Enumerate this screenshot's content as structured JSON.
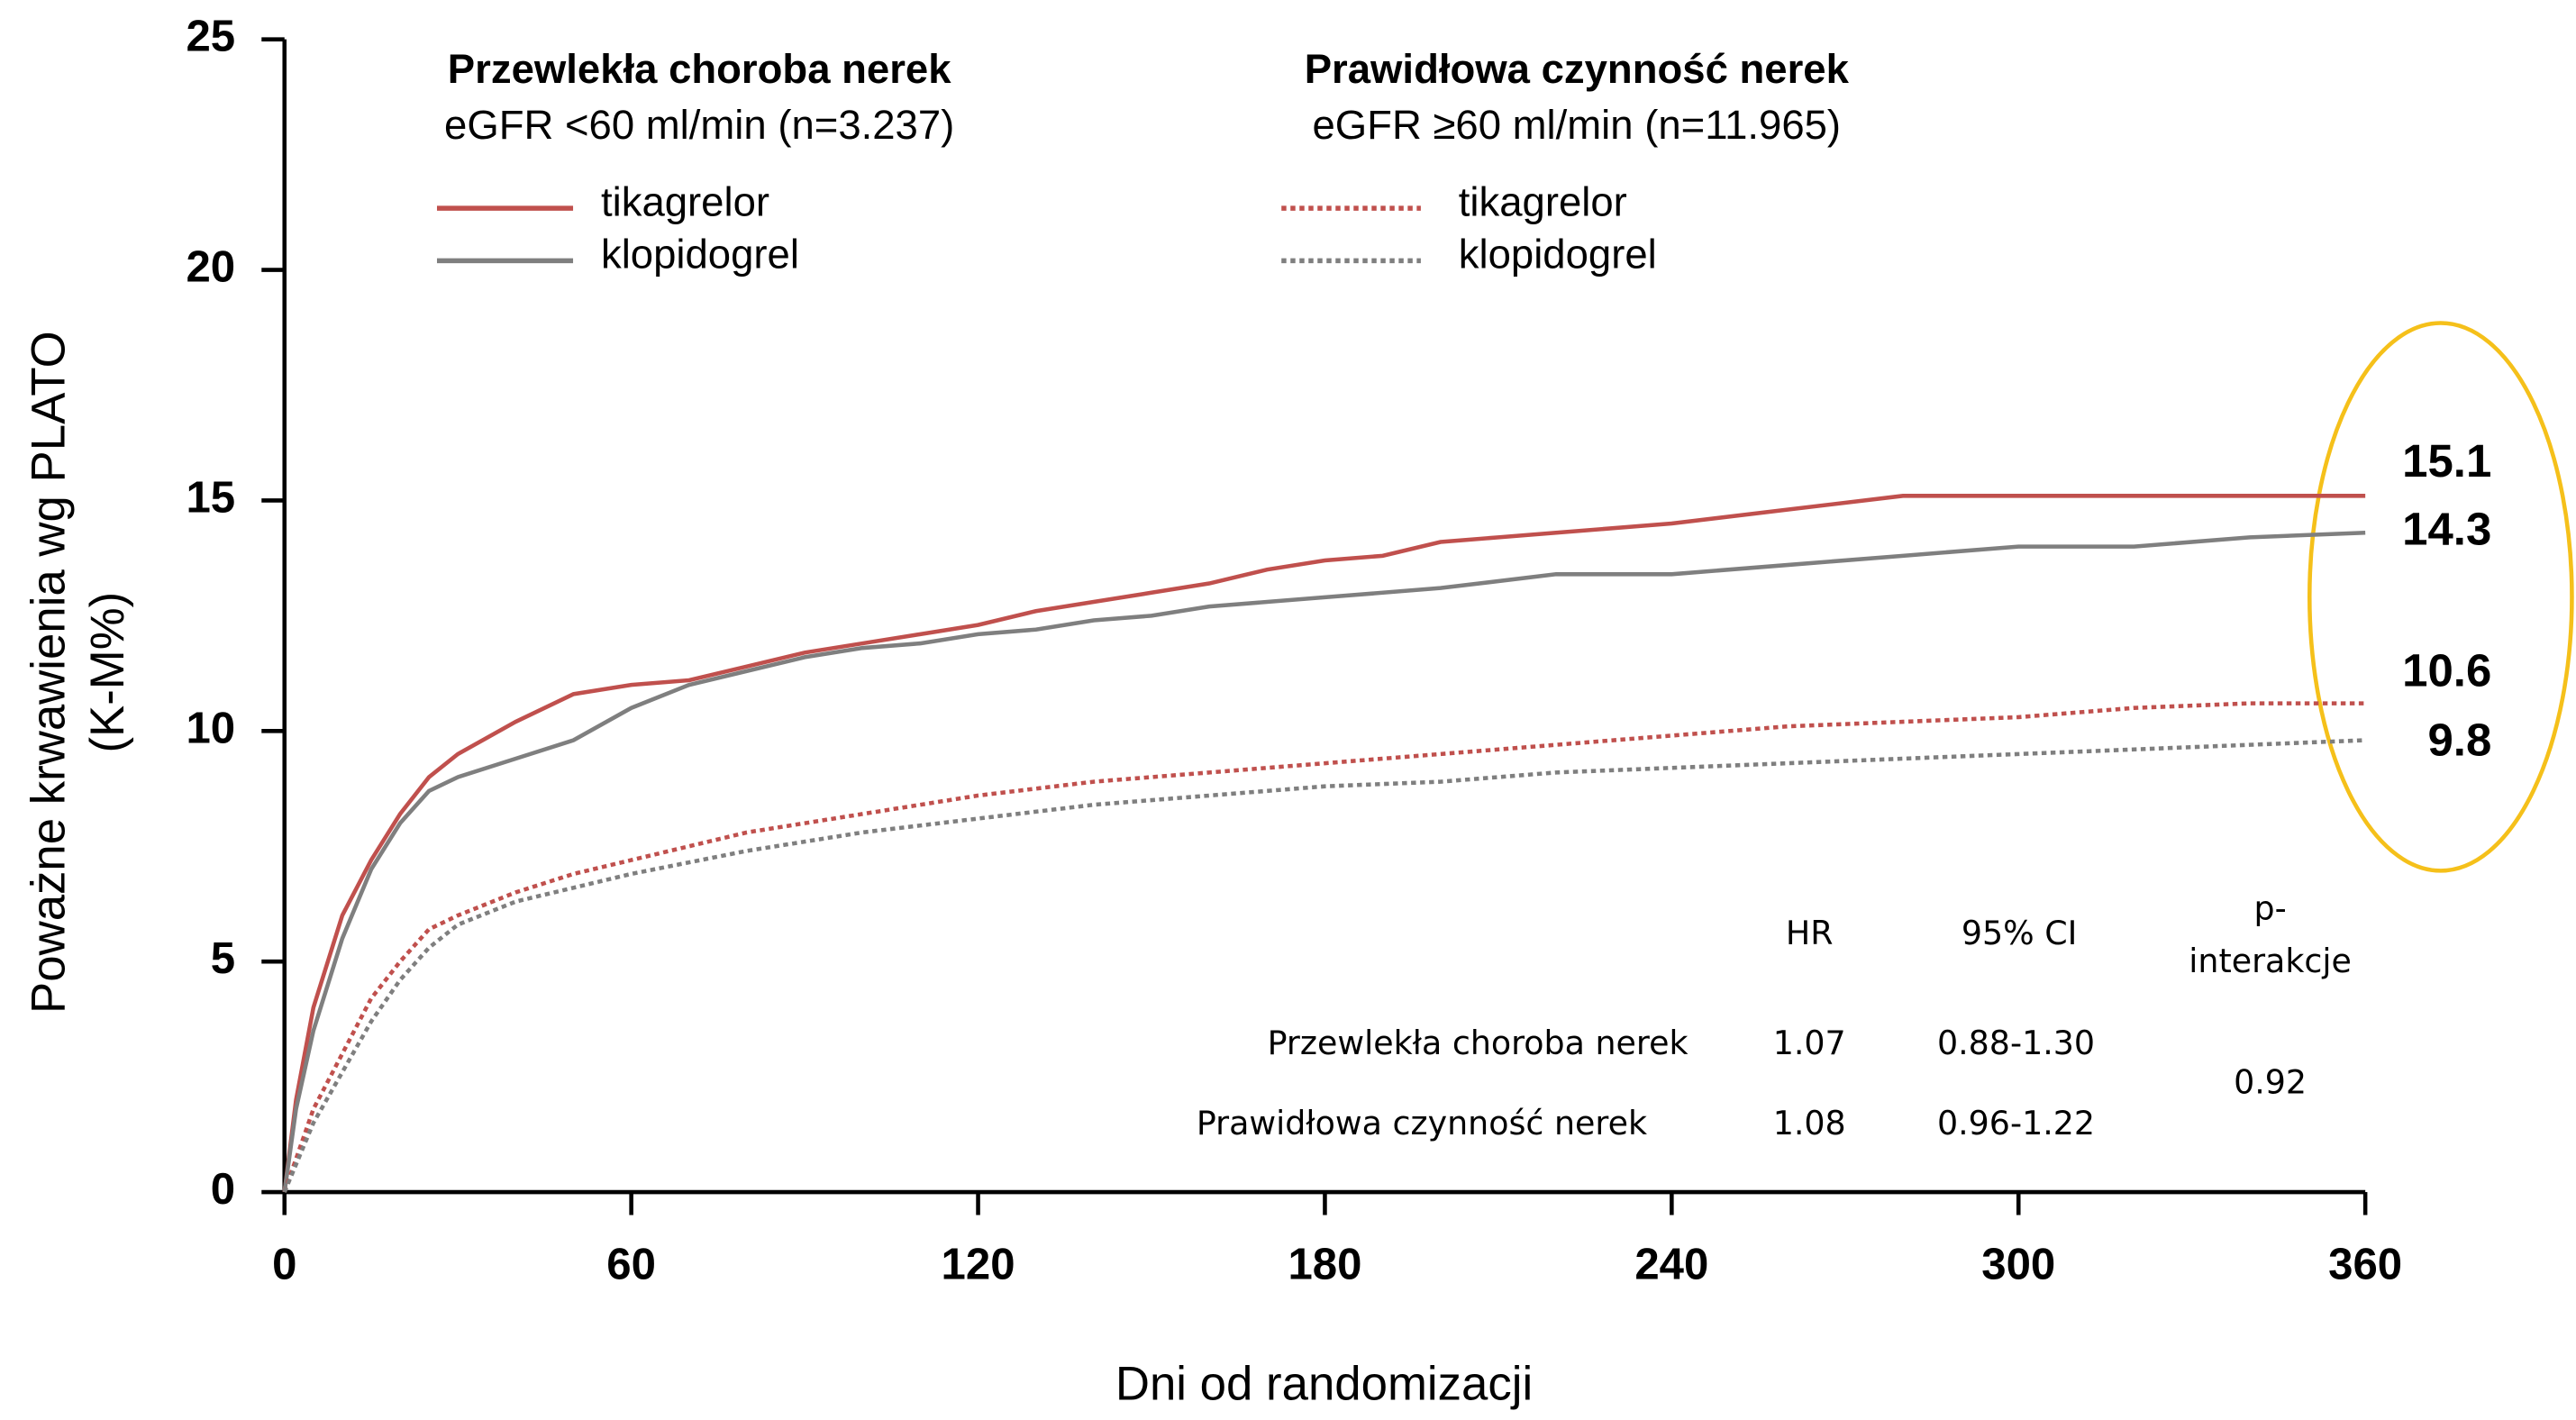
{
  "chart_data": {
    "type": "line",
    "x_label": "Dni od randomizacji",
    "y_label": [
      "Poważne krwawienia wg PLATO",
      "(K-M%)"
    ],
    "xlim": [
      0,
      360
    ],
    "xticks": [
      0,
      60,
      120,
      180,
      240,
      300,
      360
    ],
    "ylim": [
      0,
      25
    ],
    "yticks": [
      0,
      5,
      10,
      15,
      20,
      25
    ],
    "legend_groups": [
      {
        "title": "Przewlekła choroba nerek",
        "subtitle": "eGFR <60 ml/min (n=3.237)"
      },
      {
        "title": "Prawidłowa czynność nerek",
        "subtitle": "eGFR ≥60 ml/min (n=11.965)"
      }
    ],
    "series": [
      {
        "name": "tikagrelor",
        "group": 0,
        "dashed": false,
        "color": "#c0504d",
        "x": [
          0,
          2,
          5,
          10,
          15,
          20,
          25,
          30,
          40,
          50,
          60,
          70,
          80,
          90,
          100,
          110,
          120,
          130,
          140,
          150,
          160,
          170,
          180,
          190,
          200,
          210,
          220,
          240,
          260,
          280,
          300,
          360
        ],
        "values": [
          0,
          2,
          4,
          6,
          7.2,
          8.2,
          9,
          9.5,
          10.2,
          10.8,
          11,
          11.1,
          11.4,
          11.7,
          11.9,
          12.1,
          12.3,
          12.6,
          12.8,
          13,
          13.2,
          13.5,
          13.7,
          13.8,
          14.1,
          14.2,
          14.3,
          14.5,
          14.8,
          15.1,
          15.1,
          15.1
        ],
        "end_value": 15.1
      },
      {
        "name": "klopidogrel",
        "group": 0,
        "dashed": false,
        "color": "#7f7f7f",
        "x": [
          0,
          2,
          5,
          10,
          15,
          20,
          25,
          30,
          40,
          50,
          60,
          70,
          80,
          90,
          100,
          110,
          120,
          130,
          140,
          150,
          160,
          170,
          180,
          200,
          220,
          240,
          260,
          280,
          300,
          320,
          340,
          360
        ],
        "values": [
          0,
          1.8,
          3.5,
          5.5,
          7,
          8,
          8.7,
          9,
          9.4,
          9.8,
          10.5,
          11,
          11.3,
          11.6,
          11.8,
          11.9,
          12.1,
          12.2,
          12.4,
          12.5,
          12.7,
          12.8,
          12.9,
          13.1,
          13.4,
          13.4,
          13.6,
          13.8,
          14,
          14,
          14.2,
          14.3
        ],
        "end_value": 14.3
      },
      {
        "name": "tikagrelor",
        "group": 1,
        "dashed": true,
        "color": "#c0504d",
        "x": [
          0,
          5,
          10,
          15,
          20,
          25,
          30,
          40,
          50,
          60,
          80,
          100,
          120,
          140,
          160,
          180,
          200,
          220,
          240,
          260,
          280,
          300,
          320,
          340,
          360
        ],
        "values": [
          0,
          1.8,
          3,
          4.2,
          5,
          5.7,
          6,
          6.5,
          6.9,
          7.2,
          7.8,
          8.2,
          8.6,
          8.9,
          9.1,
          9.3,
          9.5,
          9.7,
          9.9,
          10.1,
          10.2,
          10.3,
          10.5,
          10.6,
          10.6
        ],
        "end_value": 10.6
      },
      {
        "name": "klopidogrel",
        "group": 1,
        "dashed": true,
        "color": "#7f7f7f",
        "x": [
          0,
          5,
          10,
          15,
          20,
          25,
          30,
          40,
          50,
          60,
          80,
          100,
          120,
          140,
          160,
          180,
          200,
          220,
          240,
          260,
          280,
          300,
          320,
          340,
          360
        ],
        "values": [
          0,
          1.5,
          2.6,
          3.7,
          4.6,
          5.3,
          5.8,
          6.3,
          6.6,
          6.9,
          7.4,
          7.8,
          8.1,
          8.4,
          8.6,
          8.8,
          8.9,
          9.1,
          9.2,
          9.3,
          9.4,
          9.5,
          9.6,
          9.7,
          9.8
        ],
        "end_value": 9.8
      }
    ],
    "hr_table": {
      "headers": [
        "HR",
        "95% CI",
        [
          "p-",
          "interakcje"
        ]
      ],
      "rows": [
        [
          "Przewlekła choroba nerek",
          "1.07",
          "0.88-1.30"
        ],
        [
          "Prawidłowa czynność nerek",
          "1.08",
          "0.96-1.22"
        ]
      ],
      "p_value": "0.92"
    }
  }
}
